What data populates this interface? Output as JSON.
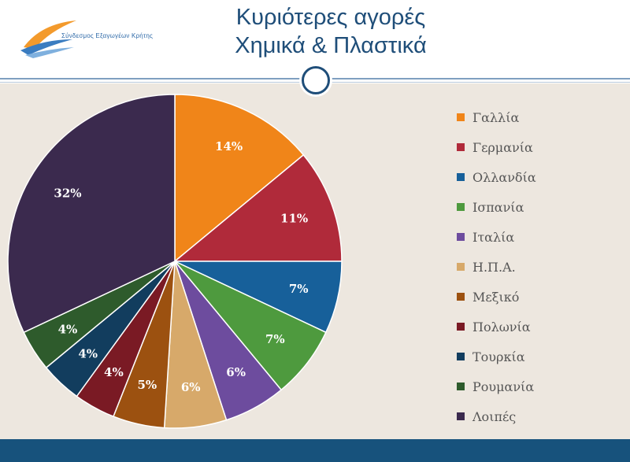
{
  "slide": {
    "title_line1": "Κυριότερες αγορές",
    "title_line2": "Χημικά & Πλαστικά",
    "logo_text": "Σύνδεσμος Εξαγωγέων Κρήτης"
  },
  "chart_data": {
    "type": "pie",
    "categories": [
      "Γαλλία",
      "Γερμανία",
      "Ολλανδία",
      "Ισπανία",
      "Ιταλία",
      "Η.Π.Α.",
      "Μεξικό",
      "Πολωνία",
      "Τουρκία",
      "Ρουμανία",
      "Λοιπές"
    ],
    "values": [
      14,
      11,
      7,
      7,
      6,
      6,
      5,
      4,
      4,
      4,
      32
    ],
    "data_labels": [
      "14%",
      "11%",
      "7%",
      "7%",
      "6%",
      "6%",
      "5%",
      "4%",
      "4%",
      "4%",
      "32%"
    ],
    "colors": [
      "#f08519",
      "#b02a3a",
      "#17609a",
      "#4e9a3e",
      "#6d4c9e",
      "#d7a96a",
      "#9c5110",
      "#7a1a24",
      "#123d5e",
      "#2e5b2c",
      "#3b2a4e"
    ],
    "legend_position": "right",
    "unit": "%"
  }
}
